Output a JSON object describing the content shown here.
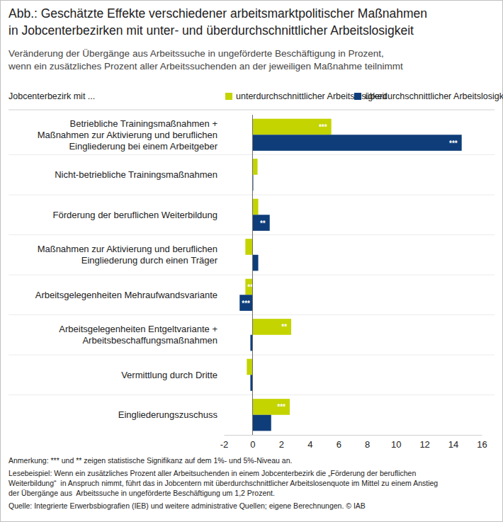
{
  "chart_data": {
    "type": "bar",
    "orientation": "horizontal",
    "title": "Abb.: Geschätzte Effekte verschiedener arbeitsmarktpolitischer Maßnahmen\nin Jobcenterbezirken mit unter- und überdurchschnittlicher Arbeitslosigkeit",
    "subtitle": "Veränderung der Übergänge aus Arbeitssuche in ungeförderte Beschäftigung in Prozent,\nwenn ein zusätzliches Prozent aller Arbeitssuchenden an der jeweiligen Maßnahme teilnimmt",
    "legend_title": "Jobcenterbezirk mit ...",
    "categories": [
      "Betriebliche Trainingsmaßnahmen +\nMaßnahmen zur Aktivierung und beruflichen\nEingliederung bei einem Arbeitgeber",
      "Nicht-betriebliche Trainingsmaßnahmen",
      "Förderung der beruflichen Weiterbildung",
      "Maßnahmen zur Aktivierung und beruflichen\nEingliederung durch einen Träger",
      "Arbeitsgelegenheiten Mehraufwandsvariante",
      "Arbeitsgelegenheiten Entgeltvariante +\nArbeitsbeschaffungsmaßnahmen",
      "Vermittlung durch Dritte",
      "Eingliederungszuschuss"
    ],
    "series": [
      {
        "name": "unterdurchschnittlicher Arbeitslosigkeit",
        "color": "#c3d400",
        "values": [
          5.5,
          0.35,
          0.4,
          -0.5,
          -0.5,
          2.7,
          -0.4,
          2.6
        ],
        "significance": [
          "***",
          null,
          null,
          null,
          "**",
          "**",
          null,
          "***"
        ]
      },
      {
        "name": "überdurchschnittlicher Arbeitslosigkeit",
        "color": "#0e3d7a",
        "values": [
          14.6,
          0.05,
          1.2,
          0.4,
          -0.9,
          -0.15,
          -0.15,
          1.3
        ],
        "significance": [
          "***",
          null,
          "**",
          null,
          "***",
          null,
          null,
          null
        ]
      }
    ],
    "xlim": [
      -2,
      16
    ],
    "xticks": [
      -2,
      0,
      2,
      4,
      6,
      8,
      10,
      12,
      14,
      16
    ],
    "grid": false,
    "legend": "top",
    "notes": [
      "Anmerkung: *** und ** zeigen statistische Signifikanz auf dem 1%- und 5%-Niveau an.",
      "Lesebeispiel: Wenn ein zusätzliches Prozent aller Arbeitsuchenden in einem Jobcenterbezirk die „Förderung der beruflichen\nWeiterbildung“  in Anspruch nimmt, führt das in Jobcentern mit überdurchschnittlicher Arbeitslosenquote im Mittel zu einem Anstieg\nder Übergänge aus  Arbeitssuche in ungeförderte Beschäftigung um 1,2 Prozent.",
      "Quelle: Integrierte Erwerbsbiografien (IEB) und weitere administrative Quellen; eigene Berechnungen. © IAB"
    ]
  }
}
